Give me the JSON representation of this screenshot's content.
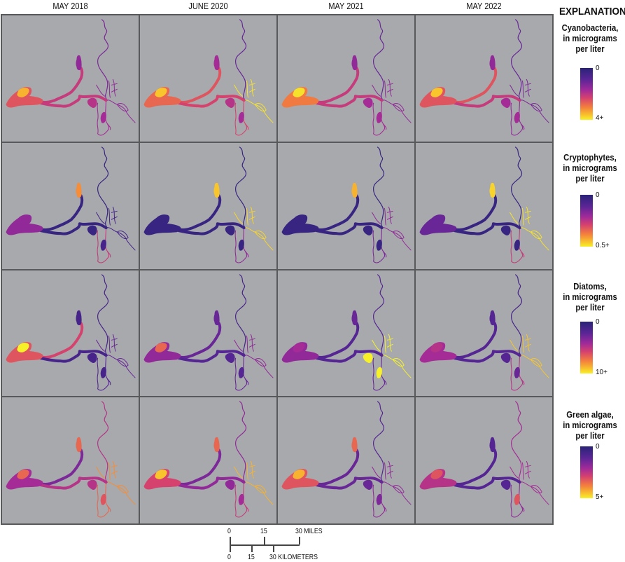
{
  "columns": [
    "MAY 2018",
    "JUNE 2020",
    "MAY 2021",
    "MAY 2022"
  ],
  "legend": {
    "title": "EXPLANATION",
    "items": [
      {
        "name": "Cyanobacteria",
        "line1": "Cyanobacteria,",
        "line2": "in micrograms",
        "line3": "per liter",
        "min": "0",
        "max": "4+"
      },
      {
        "name": "Cryptophytes",
        "line1": "Cryptophytes,",
        "line2": "in micrograms",
        "line3": "per liter",
        "min": "0",
        "max": "0.5+"
      },
      {
        "name": "Diatoms",
        "line1": "Diatoms,",
        "line2": "in micrograms",
        "line3": "per liter",
        "min": "0",
        "max": "10+"
      },
      {
        "name": "Green algae",
        "line1": "Green algae,",
        "line2": "in micrograms",
        "line3": "per liter",
        "min": "0",
        "max": "5+"
      }
    ],
    "colors": [
      "#2a2378",
      "#5a2596",
      "#a02a9a",
      "#d6426e",
      "#f4803c",
      "#f8c02c",
      "#f7f12a"
    ]
  },
  "scale_bar": {
    "miles": {
      "ticks": [
        "0",
        "15",
        "30"
      ],
      "unit": "MILES"
    },
    "kilometers": {
      "ticks": [
        "0",
        "15",
        "30"
      ],
      "unit": "KILOMETERS"
    }
  },
  "panels_note": "relative concentration (fraction of legend max) per region: bay, bay_hotspot, channel_west, channel_east, north_arm, central_lake, south_lake, north_river, east_sloughs, south_channels",
  "panels": [
    [
      {
        "bay": 0.55,
        "bay_hotspot": 0.8,
        "channel_west": 0.45,
        "channel_east": 0.45,
        "north_arm": 0.3,
        "central_lake": 0.4,
        "south_lake": 0.35,
        "north_river": 0.25,
        "east_sloughs": 0.3,
        "south_channels": 0.35
      },
      {
        "bay": 0.6,
        "bay_hotspot": 0.85,
        "channel_west": 0.55,
        "channel_east": 0.5,
        "north_arm": 0.35,
        "central_lake": 0.4,
        "south_lake": 0.35,
        "north_river": 0.2,
        "east_sloughs": 0.95,
        "south_channels": 0.5
      },
      {
        "bay": 0.65,
        "bay_hotspot": 0.95,
        "channel_west": 0.45,
        "channel_east": 0.45,
        "north_arm": 0.3,
        "central_lake": 0.35,
        "south_lake": 0.35,
        "north_river": 0.2,
        "east_sloughs": 0.3,
        "south_channels": 0.35
      },
      {
        "bay": 0.55,
        "bay_hotspot": 0.85,
        "channel_west": 0.55,
        "channel_east": 0.45,
        "north_arm": 0.3,
        "central_lake": 0.35,
        "south_lake": 0.35,
        "north_river": 0.2,
        "east_sloughs": 0.25,
        "south_channels": 0.3
      }
    ],
    [
      {
        "bay": 0.3,
        "bay_hotspot": 0.3,
        "channel_west": 0.05,
        "channel_east": 0.05,
        "north_arm": 0.7,
        "central_lake": 0.05,
        "south_lake": 0.1,
        "north_river": 0.05,
        "east_sloughs": 0.1,
        "south_channels": 0.45
      },
      {
        "bay": 0.05,
        "bay_hotspot": 0.05,
        "channel_west": 0.05,
        "channel_east": 0.05,
        "north_arm": 0.85,
        "central_lake": 0.05,
        "south_lake": 0.05,
        "north_river": 0.05,
        "east_sloughs": 0.9,
        "south_channels": 0.3
      },
      {
        "bay": 0.05,
        "bay_hotspot": 0.05,
        "channel_west": 0.05,
        "channel_east": 0.05,
        "north_arm": 0.8,
        "central_lake": 0.05,
        "south_lake": 0.05,
        "north_river": 0.05,
        "east_sloughs": 0.3,
        "south_channels": 0.25
      },
      {
        "bay": 0.2,
        "bay_hotspot": 0.2,
        "channel_west": 0.05,
        "channel_east": 0.05,
        "north_arm": 0.9,
        "central_lake": 0.05,
        "south_lake": 0.05,
        "north_river": 0.05,
        "east_sloughs": 0.95,
        "south_channels": 0.45
      }
    ],
    [
      {
        "bay": 0.55,
        "bay_hotspot": 1.0,
        "channel_west": 0.5,
        "channel_east": 0.1,
        "north_arm": 0.1,
        "central_lake": 0.1,
        "south_lake": 0.1,
        "north_river": 0.1,
        "east_sloughs": 0.2,
        "south_channels": 0.15
      },
      {
        "bay": 0.3,
        "bay_hotspot": 0.6,
        "channel_west": 0.2,
        "channel_east": 0.15,
        "north_arm": 0.2,
        "central_lake": 0.15,
        "south_lake": 0.15,
        "north_river": 0.1,
        "east_sloughs": 0.3,
        "south_channels": 0.2
      },
      {
        "bay": 0.3,
        "bay_hotspot": 0.35,
        "channel_west": 0.15,
        "channel_east": 0.15,
        "north_arm": 0.2,
        "central_lake": 1.0,
        "south_lake": 1.0,
        "north_river": 0.15,
        "east_sloughs": 1.0,
        "south_channels": 0.2
      },
      {
        "bay": 0.35,
        "bay_hotspot": 0.4,
        "channel_west": 0.15,
        "channel_east": 0.15,
        "north_arm": 0.15,
        "central_lake": 0.15,
        "south_lake": 0.2,
        "north_river": 0.1,
        "east_sloughs": 0.85,
        "south_channels": 0.4
      }
    ],
    [
      {
        "bay": 0.35,
        "bay_hotspot": 0.6,
        "channel_west": 0.25,
        "channel_east": 0.4,
        "north_arm": 0.6,
        "central_lake": 0.4,
        "south_lake": 0.55,
        "north_river": 0.4,
        "east_sloughs": 0.7,
        "south_channels": 0.6
      },
      {
        "bay": 0.5,
        "bay_hotspot": 0.85,
        "channel_west": 0.25,
        "channel_east": 0.3,
        "north_arm": 0.6,
        "central_lake": 0.3,
        "south_lake": 0.35,
        "north_river": 0.3,
        "east_sloughs": 0.8,
        "south_channels": 0.45
      },
      {
        "bay": 0.55,
        "bay_hotspot": 0.8,
        "channel_west": 0.2,
        "channel_east": 0.2,
        "north_arm": 0.6,
        "central_lake": 0.2,
        "south_lake": 0.25,
        "north_river": 0.15,
        "east_sloughs": 0.3,
        "south_channels": 0.3
      },
      {
        "bay": 0.4,
        "bay_hotspot": 0.55,
        "channel_west": 0.15,
        "channel_east": 0.15,
        "north_arm": 0.15,
        "central_lake": 0.15,
        "south_lake": 0.55,
        "north_river": 0.35,
        "east_sloughs": 0.35,
        "south_channels": 0.3
      }
    ]
  ]
}
